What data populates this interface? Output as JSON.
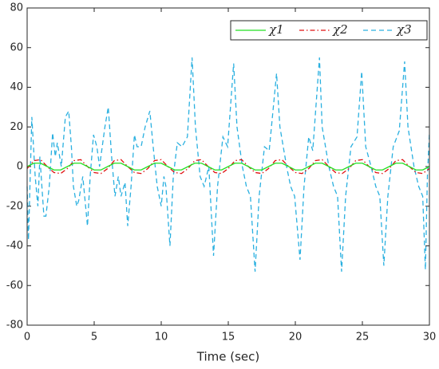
{
  "chart_data": {
    "type": "line",
    "xlabel": "Time (sec)",
    "xlim": [
      0,
      30
    ],
    "xticks": [
      0,
      5,
      10,
      15,
      20,
      25,
      30
    ],
    "ylim": [
      -80,
      80
    ],
    "yticks": [
      -80,
      -60,
      -40,
      -20,
      0,
      20,
      40,
      60,
      80
    ],
    "grid": false,
    "legend": "top-right",
    "series": [
      {
        "name": "χ1",
        "color": "#22e022",
        "dash": "solid",
        "x": [
          0,
          0.5,
          1,
          1.5,
          2,
          2.5,
          3,
          3.5,
          4,
          4.5,
          5,
          5.5,
          6,
          6.5,
          7,
          7.5,
          8,
          8.5,
          9,
          9.5,
          10,
          10.5,
          11,
          11.5,
          12,
          12.5,
          13,
          13.5,
          14,
          14.5,
          15,
          15.5,
          16,
          16.5,
          17,
          17.5,
          18,
          18.5,
          19,
          19.5,
          20,
          20.5,
          21,
          21.5,
          22,
          22.5,
          23,
          23.5,
          24,
          24.5,
          25,
          25.5,
          26,
          26.5,
          27,
          27.5,
          28,
          28.5,
          29,
          29.5,
          30
        ],
        "values": [
          0,
          1.7,
          1.7,
          0,
          -1.7,
          -1.7,
          0,
          1.7,
          1.7,
          0,
          -1.7,
          -1.7,
          0,
          1.7,
          1.7,
          0,
          -1.7,
          -1.7,
          0,
          1.7,
          1.7,
          0,
          -1.7,
          -1.7,
          0,
          1.7,
          1.7,
          0,
          -1.7,
          -1.7,
          0,
          1.7,
          1.7,
          0,
          -1.7,
          -1.7,
          0,
          1.7,
          1.7,
          0,
          -1.7,
          -1.7,
          0,
          1.7,
          1.7,
          0,
          -1.7,
          -1.7,
          0,
          1.7,
          1.7,
          0,
          -1.7,
          -1.7,
          0,
          1.7,
          1.7,
          0,
          -1.7,
          -1.7,
          0
        ]
      },
      {
        "name": "χ2",
        "color": "#e01010",
        "dash": "dashdot",
        "x": [
          0,
          0.5,
          1,
          1.5,
          2,
          2.5,
          3,
          3.5,
          4,
          4.5,
          5,
          5.5,
          6,
          6.5,
          7,
          7.5,
          8,
          8.5,
          9,
          9.5,
          10,
          10.5,
          11,
          11.5,
          12,
          12.5,
          13,
          13.5,
          14,
          14.5,
          15,
          15.5,
          16,
          16.5,
          17,
          17.5,
          18,
          18.5,
          19,
          19.5,
          20,
          20.5,
          21,
          21.5,
          22,
          22.5,
          23,
          23.5,
          24,
          24.5,
          25,
          25.5,
          26,
          26.5,
          27,
          27.5,
          28,
          28.5,
          29,
          29.5,
          30
        ],
        "values": [
          -1,
          3,
          3.5,
          0,
          -3,
          -3.5,
          -1,
          3,
          3.5,
          0,
          -3,
          -3.5,
          -1,
          3,
          3.5,
          0,
          -3,
          -3.5,
          -1,
          3,
          3.5,
          0,
          -3,
          -3.5,
          -1,
          3,
          3.5,
          0,
          -3,
          -3.5,
          -1,
          3,
          3.5,
          0,
          -3,
          -3.5,
          -1,
          3,
          3.5,
          0,
          -3,
          -3.5,
          -1,
          3,
          3.5,
          0,
          -3,
          -3.5,
          -1,
          3,
          3.5,
          0,
          -3,
          -3.5,
          -1,
          3,
          3.5,
          0,
          -3,
          -3.5,
          -1
        ]
      },
      {
        "name": "χ3",
        "color": "#2ab0e0",
        "dash": "dashed",
        "x": [
          0,
          0.1,
          0.35,
          0.6,
          0.8,
          0.95,
          1.25,
          1.4,
          1.65,
          1.9,
          2.1,
          2.25,
          2.55,
          2.85,
          3.1,
          3.3,
          3.45,
          3.7,
          3.85,
          4.15,
          4.5,
          4.7,
          4.95,
          5.2,
          5.4,
          5.8,
          6.05,
          6.3,
          6.55,
          6.8,
          7.0,
          7.3,
          7.5,
          7.75,
          8.0,
          8.2,
          8.5,
          8.8,
          9.15,
          9.4,
          9.7,
          10.0,
          10.2,
          10.35,
          10.65,
          10.9,
          11.2,
          11.55,
          11.95,
          12.3,
          12.55,
          12.9,
          13.2,
          13.55,
          13.9,
          14.2,
          14.6,
          14.95,
          15.4,
          15.65,
          16.05,
          16.35,
          16.65,
          17.0,
          17.3,
          17.7,
          18.05,
          18.6,
          18.85,
          19.35,
          19.65,
          19.95,
          20.35,
          20.65,
          21.0,
          21.3,
          21.8,
          22.0,
          22.5,
          22.85,
          23.15,
          23.45,
          23.75,
          24.15,
          24.6,
          24.95,
          25.25,
          25.65,
          26.0,
          26.3,
          26.6,
          26.9,
          27.3,
          27.75,
          28.15,
          28.4,
          28.85,
          29.2,
          29.5,
          29.7,
          29.85,
          30.0
        ],
        "values": [
          -10,
          -37,
          25,
          -5,
          -20,
          5,
          -25,
          -25,
          -10,
          17,
          5,
          12,
          0,
          25,
          28,
          10,
          -10,
          -20,
          -17,
          -5,
          -30,
          -5,
          16,
          10,
          0,
          20,
          30,
          5,
          -15,
          -5,
          -15,
          -8,
          -30,
          -10,
          16,
          10,
          10,
          20,
          28,
          10,
          -10,
          -20,
          -5,
          -10,
          -40,
          -5,
          12,
          10,
          15,
          55,
          20,
          -5,
          -10,
          0,
          -45,
          -10,
          15,
          10,
          52,
          20,
          0,
          -10,
          -15,
          -53,
          -15,
          10,
          8,
          47,
          20,
          0,
          -10,
          -15,
          -47,
          -10,
          15,
          8,
          55,
          20,
          0,
          -10,
          -15,
          -53,
          -15,
          10,
          15,
          48,
          10,
          0,
          -10,
          -15,
          -50,
          -15,
          10,
          18,
          53,
          20,
          0,
          -10,
          -15,
          -52,
          -5,
          17
        ]
      }
    ]
  }
}
